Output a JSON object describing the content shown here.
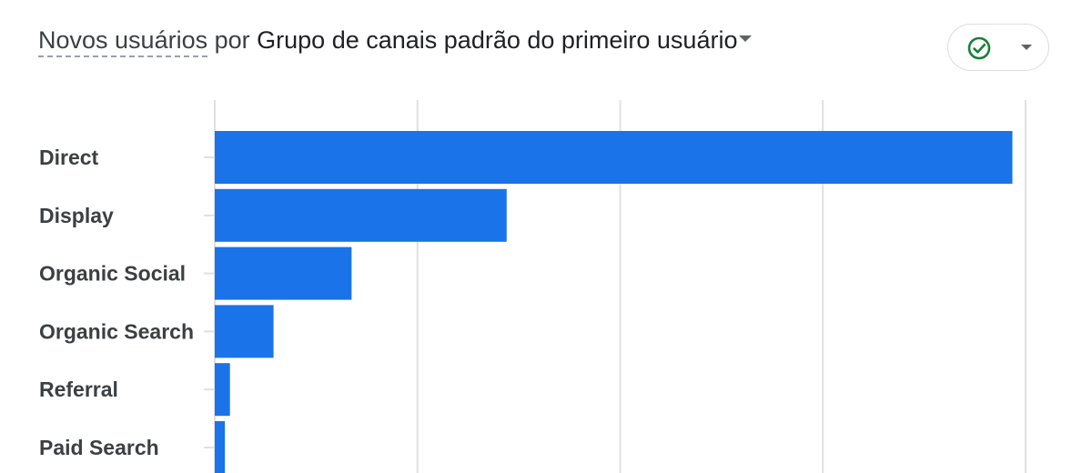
{
  "header": {
    "metric": "Novos usuários",
    "joiner": "por",
    "dimension": "Grupo de canais padrão do primeiro usuário"
  },
  "status_icon": "check-circle-icon",
  "colors": {
    "bar": "#1a73e8",
    "grid": "#e0e0e0",
    "status_ok": "#188038"
  },
  "chart_data": {
    "type": "bar",
    "orientation": "horizontal",
    "title": "",
    "xlabel": "",
    "ylabel": "",
    "categories": [
      "Direct",
      "Display",
      "Organic Social",
      "Organic Search",
      "Referral",
      "Paid Search"
    ],
    "values": [
      3935,
      1440,
      675,
      290,
      75,
      50
    ],
    "xlim": [
      0,
      4000
    ],
    "grid": true,
    "legend": "none"
  }
}
